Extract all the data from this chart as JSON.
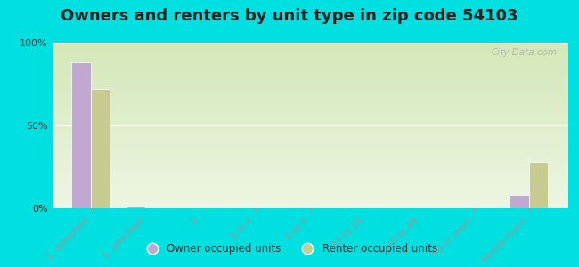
{
  "title": "Owners and renters by unit type in zip code 54103",
  "categories": [
    "1, detached",
    "1, attached",
    "2",
    "3 or 4",
    "5 to 9",
    "10 to 19",
    "20 to 49",
    "50 or more",
    "Mobile home"
  ],
  "owner_values": [
    88,
    1,
    0,
    0,
    0,
    0,
    0,
    0,
    8
  ],
  "renter_values": [
    72,
    0,
    0,
    0,
    0,
    0,
    0,
    0,
    28
  ],
  "owner_color": "#c0a8d0",
  "renter_color": "#c8cc90",
  "background_color": "#00e0e0",
  "plot_bg_colors": [
    "#d4e8b8",
    "#eef6e4"
  ],
  "ylabel_ticks": [
    0,
    50,
    100
  ],
  "bar_width": 0.35,
  "legend_owner": "Owner occupied units",
  "legend_renter": "Renter occupied units",
  "title_fontsize": 13,
  "watermark": "City-Data.com"
}
